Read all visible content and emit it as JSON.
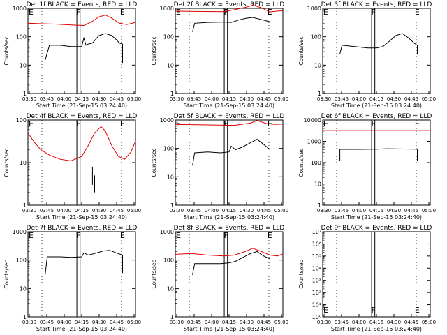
{
  "figure": {
    "colors": {
      "events": "#000000",
      "lld": "#e00000"
    },
    "xlabel": "Start Time (21-Sep-15 03:24:40)",
    "ylabel": "Counts/sec",
    "xticks": [
      "03:30",
      "03:45",
      "04:00",
      "04:15",
      "04:30",
      "04:45",
      "05:00"
    ]
  },
  "chart_data": [
    {
      "type": "line",
      "title": "Det 1f BLACK = Events, RED = LLD",
      "yscale": "log",
      "ylim": [
        1,
        1000
      ],
      "yticks": [
        {
          "v": 1,
          "label": "1"
        },
        {
          "v": 10,
          "label": "10"
        },
        {
          "v": 100,
          "label": "100"
        },
        {
          "v": 1000,
          "label": "1000"
        }
      ],
      "markers": [
        "E",
        "F",
        "E"
      ],
      "series": [
        {
          "name": "Events",
          "x": [
            0.16,
            0.2,
            0.3,
            0.4,
            0.5,
            0.52,
            0.54,
            0.56,
            0.6,
            0.66,
            0.72,
            0.78,
            0.82,
            0.85,
            0.88,
            0.88
          ],
          "y": [
            15,
            50,
            50,
            45,
            45,
            90,
            50,
            55,
            60,
            110,
            130,
            110,
            80,
            60,
            55,
            12
          ]
        },
        {
          "name": "LLD",
          "x": [
            0.0,
            0.1,
            0.25,
            0.4,
            0.52,
            0.6,
            0.66,
            0.72,
            0.78,
            0.85,
            0.92,
            1.0
          ],
          "y": [
            300,
            290,
            280,
            260,
            250,
            350,
            500,
            580,
            450,
            300,
            270,
            320
          ]
        }
      ]
    },
    {
      "type": "line",
      "title": "Det 2f BLACK = Events, RED = LLD",
      "yscale": "log",
      "ylim": [
        1,
        1000
      ],
      "yticks": [
        {
          "v": 1,
          "label": "1"
        },
        {
          "v": 10,
          "label": "10"
        },
        {
          "v": 100,
          "label": "100"
        },
        {
          "v": 1000,
          "label": "1000"
        }
      ],
      "markers": [
        "E",
        "F",
        "E"
      ],
      "series": [
        {
          "name": "Events",
          "x": [
            0.16,
            0.18,
            0.3,
            0.45,
            0.52,
            0.6,
            0.66,
            0.72,
            0.78,
            0.85,
            0.88,
            0.88
          ],
          "y": [
            150,
            300,
            320,
            330,
            320,
            400,
            450,
            480,
            420,
            360,
            340,
            120
          ]
        },
        {
          "name": "LLD",
          "x": [
            0.0,
            0.2,
            0.45,
            0.55,
            0.66,
            0.72,
            0.8,
            0.88,
            0.95,
            1.0
          ],
          "y": [
            800,
            780,
            760,
            900,
            1100,
            1300,
            1050,
            750,
            800,
            820
          ]
        }
      ]
    },
    {
      "type": "line",
      "title": "Det 3f BLACK = Events, RED = LLD",
      "yscale": "log",
      "ylim": [
        1,
        1000
      ],
      "yticks": [
        {
          "v": 1,
          "label": "1"
        },
        {
          "v": 10,
          "label": "10"
        },
        {
          "v": 100,
          "label": "100"
        },
        {
          "v": 1000,
          "label": "1000"
        }
      ],
      "markers": [
        "E",
        "F",
        "E"
      ],
      "series": [
        {
          "name": "Events",
          "x": [
            0.16,
            0.18,
            0.3,
            0.42,
            0.5,
            0.56,
            0.62,
            0.68,
            0.74,
            0.8,
            0.85,
            0.88,
            0.88
          ],
          "y": [
            25,
            50,
            45,
            40,
            40,
            45,
            70,
            110,
            130,
            90,
            60,
            50,
            25
          ]
        }
      ]
    },
    {
      "type": "line",
      "title": "Det 4f BLACK = Events, RED = LLD",
      "yscale": "log",
      "ylim": [
        1,
        100
      ],
      "yticks": [
        {
          "v": 1,
          "label": "1"
        },
        {
          "v": 10,
          "label": "10"
        },
        {
          "v": 100,
          "label": "100"
        }
      ],
      "markers": [
        "E",
        "F",
        "E"
      ],
      "series": [
        {
          "name": "LLD",
          "x": [
            0.0,
            0.06,
            0.12,
            0.2,
            0.3,
            0.4,
            0.5,
            0.56,
            0.62,
            0.68,
            0.72,
            0.78,
            0.84,
            0.9,
            0.96,
            1.0
          ],
          "y": [
            50,
            30,
            20,
            15,
            12,
            11,
            14,
            25,
            50,
            70,
            55,
            25,
            14,
            12,
            18,
            32
          ]
        },
        {
          "name": "Events",
          "x": [
            0.6,
            0.6
          ],
          "y": [
            3,
            8
          ]
        },
        {
          "name": "Events",
          "x": [
            0.62,
            0.62
          ],
          "y": [
            2,
            5
          ]
        }
      ]
    },
    {
      "type": "line",
      "title": "Det 5f BLACK = Events, RED = LLD",
      "yscale": "log",
      "ylim": [
        1,
        1000
      ],
      "yticks": [
        {
          "v": 1,
          "label": "1"
        },
        {
          "v": 10,
          "label": "10"
        },
        {
          "v": 100,
          "label": "100"
        },
        {
          "v": 1000,
          "label": "1000"
        }
      ],
      "markers": [
        "E",
        "F",
        "E"
      ],
      "series": [
        {
          "name": "Events",
          "x": [
            0.16,
            0.18,
            0.3,
            0.42,
            0.5,
            0.52,
            0.56,
            0.62,
            0.7,
            0.76,
            0.82,
            0.88,
            0.88
          ],
          "y": [
            25,
            70,
            75,
            70,
            75,
            120,
            90,
            110,
            160,
            210,
            140,
            90,
            25
          ]
        },
        {
          "name": "LLD",
          "x": [
            0.0,
            0.2,
            0.4,
            0.55,
            0.7,
            0.76,
            0.85,
            0.92,
            1.0
          ],
          "y": [
            700,
            680,
            660,
            650,
            780,
            950,
            750,
            700,
            720
          ]
        }
      ]
    },
    {
      "type": "line",
      "title": "Det 6f BLACK = Events, RED = LLD",
      "yscale": "log",
      "ylim": [
        1,
        10000
      ],
      "yticks": [
        {
          "v": 1,
          "label": "1"
        },
        {
          "v": 10,
          "label": "10"
        },
        {
          "v": 100,
          "label": "100"
        },
        {
          "v": 1000,
          "label": "1000"
        },
        {
          "v": 10000,
          "label": "10000"
        }
      ],
      "markers": [
        "E",
        "F",
        "E"
      ],
      "series": [
        {
          "name": "Events",
          "x": [
            0.16,
            0.16,
            0.3,
            0.5,
            0.6,
            0.7,
            0.88,
            0.88
          ],
          "y": [
            120,
            420,
            420,
            430,
            450,
            440,
            430,
            120
          ]
        },
        {
          "name": "LLD",
          "x": [
            0.0,
            1.0
          ],
          "y": [
            3200,
            3200
          ]
        }
      ]
    },
    {
      "type": "line",
      "title": "Det 7f BLACK = Events, RED = LLD",
      "yscale": "log",
      "ylim": [
        1,
        1000
      ],
      "yticks": [
        {
          "v": 1,
          "label": "1"
        },
        {
          "v": 10,
          "label": "10"
        },
        {
          "v": 100,
          "label": "100"
        },
        {
          "v": 1000,
          "label": "1000"
        }
      ],
      "markers": [
        "E",
        "F",
        "E"
      ],
      "series": [
        {
          "name": "Events",
          "x": [
            0.16,
            0.18,
            0.3,
            0.4,
            0.5,
            0.52,
            0.56,
            0.62,
            0.7,
            0.76,
            0.82,
            0.88,
            0.88
          ],
          "y": [
            30,
            130,
            130,
            125,
            130,
            180,
            150,
            170,
            210,
            220,
            180,
            150,
            35
          ]
        }
      ]
    },
    {
      "type": "line",
      "title": "Det 8f BLACK = Events, RED = LLD",
      "yscale": "log",
      "ylim": [
        1,
        1000
      ],
      "yticks": [
        {
          "v": 1,
          "label": "1"
        },
        {
          "v": 10,
          "label": "10"
        },
        {
          "v": 100,
          "label": "100"
        },
        {
          "v": 1000,
          "label": "1000"
        }
      ],
      "markers": [
        "E",
        "F",
        "E"
      ],
      "series": [
        {
          "name": "Events",
          "x": [
            0.16,
            0.18,
            0.3,
            0.42,
            0.5,
            0.56,
            0.62,
            0.7,
            0.76,
            0.82,
            0.88,
            0.88
          ],
          "y": [
            30,
            75,
            75,
            75,
            80,
            90,
            120,
            170,
            200,
            140,
            110,
            30
          ]
        },
        {
          "name": "LLD",
          "x": [
            0.0,
            0.15,
            0.3,
            0.45,
            0.55,
            0.65,
            0.72,
            0.8,
            0.88,
            0.95,
            1.0
          ],
          "y": [
            160,
            170,
            150,
            140,
            150,
            200,
            260,
            200,
            150,
            140,
            165
          ]
        }
      ]
    },
    {
      "type": "line",
      "title": "Det 9f BLACK = Events, RED = LLD",
      "yscale": "log",
      "ylim": [
        1,
        10000000
      ],
      "yticks": [
        {
          "v": 1,
          "label": "10⁰"
        },
        {
          "v": 10,
          "label": "10¹"
        },
        {
          "v": 100,
          "label": "10²"
        },
        {
          "v": 1000,
          "label": "10³"
        },
        {
          "v": 10000,
          "label": "10⁴"
        },
        {
          "v": 100000,
          "label": "10⁵"
        },
        {
          "v": 1000000,
          "label": "10⁶"
        },
        {
          "v": 10000000,
          "label": "10⁷"
        }
      ],
      "markers": [
        "E",
        "F",
        "E"
      ],
      "series": []
    }
  ]
}
